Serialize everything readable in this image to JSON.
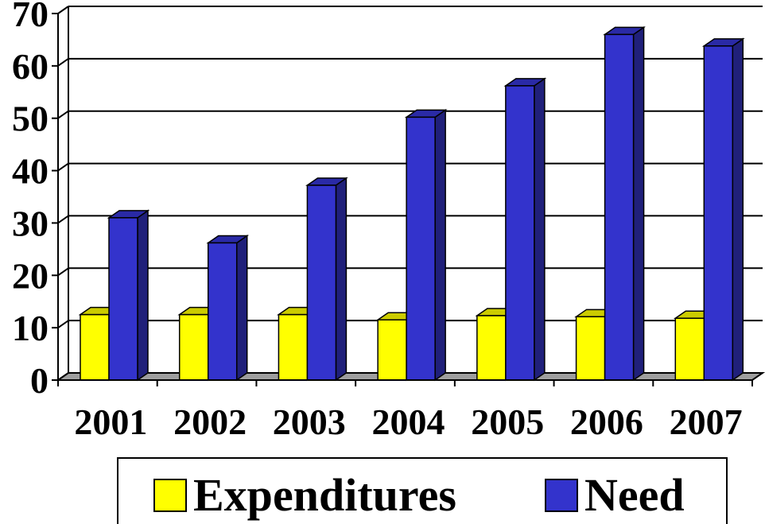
{
  "chart_data": {
    "type": "bar",
    "categories": [
      "2001",
      "2002",
      "2003",
      "2004",
      "2005",
      "2006",
      "2007"
    ],
    "series": [
      {
        "name": "Expenditures",
        "values": [
          12.5,
          12.5,
          12.5,
          11.5,
          12.3,
          12.1,
          11.8
        ]
      },
      {
        "name": "Need",
        "values": [
          31,
          26.2,
          37.2,
          50.2,
          56.2,
          66,
          63.8
        ]
      }
    ],
    "yticks": [
      "0",
      "10",
      "20",
      "30",
      "40",
      "50",
      "60",
      "70"
    ],
    "ylim": [
      0,
      70
    ],
    "grid": true,
    "legend_position": "bottom",
    "colors": {
      "expenditures_front": "#ffff00",
      "expenditures_top": "#cccc00",
      "expenditures_side": "#999900",
      "need_front": "#3333cc",
      "need_top": "#2a2aa6",
      "need_side": "#20207a",
      "floor": "#9e9e9e"
    }
  }
}
